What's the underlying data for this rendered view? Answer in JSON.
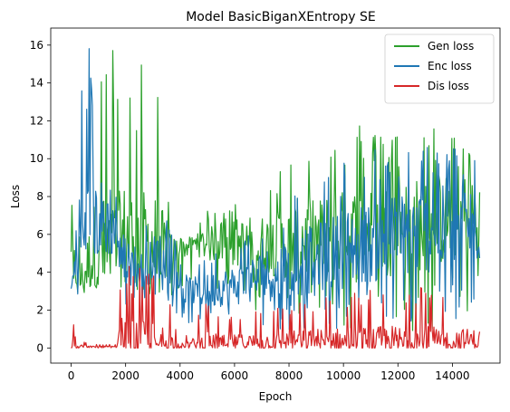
{
  "chart_data": {
    "type": "line",
    "title": "Model BasicBiganXEntropy SE",
    "xlabel": "Epoch",
    "ylabel": "Loss",
    "xlim": [
      -750,
      15750
    ],
    "ylim": [
      -0.8,
      16.9
    ],
    "xticks": [
      0,
      2000,
      4000,
      6000,
      8000,
      10000,
      12000,
      14000
    ],
    "yticks": [
      0,
      2,
      4,
      6,
      8,
      10,
      12,
      14,
      16
    ],
    "grid": false,
    "legend_position": "upper right",
    "series": [
      {
        "name": "Gen loss",
        "color": "#2ca02c",
        "envelope": {
          "x": [
            0,
            100,
            300,
            500,
            800,
            1000,
            1200,
            1500,
            1750,
            2000,
            2300,
            2600,
            2900,
            3200,
            3600,
            4000,
            4500,
            5000,
            5500,
            6000,
            6500,
            7000,
            7500,
            8000,
            8500,
            9000,
            9500,
            10000,
            10500,
            11000,
            11500,
            12000,
            12500,
            13000,
            13500,
            14000,
            14500,
            15000
          ],
          "high": [
            14.5,
            8.0,
            6.5,
            7.5,
            15.5,
            16.0,
            16.0,
            16.0,
            16.0,
            15.8,
            14.0,
            15.5,
            15.0,
            15.8,
            7.5,
            6.0,
            5.8,
            7.5,
            7.0,
            8.5,
            8.5,
            8.8,
            9.5,
            10.0,
            12.2,
            10.5,
            11.0,
            11.5,
            12.5,
            11.0,
            12.5,
            11.5,
            12.2,
            11.5,
            12.0,
            11.5,
            11.0,
            10.5
          ],
          "low": [
            4.0,
            2.8,
            2.2,
            2.8,
            3.5,
            3.0,
            3.5,
            3.5,
            3.8,
            2.0,
            3.0,
            2.8,
            2.5,
            3.0,
            2.5,
            3.2,
            3.5,
            3.2,
            3.0,
            2.5,
            2.0,
            2.0,
            1.8,
            1.5,
            1.5,
            1.5,
            1.0,
            1.0,
            1.0,
            1.0,
            0.8,
            0.8,
            0.8,
            0.8,
            0.8,
            0.8,
            0.8,
            1.0
          ],
          "mid": [
            6.0,
            4.5,
            3.5,
            4.0,
            5.0,
            5.0,
            5.2,
            5.0,
            5.5,
            5.8,
            6.0,
            5.5,
            5.5,
            5.2,
            5.0,
            5.2,
            5.5,
            5.5,
            5.5,
            5.5,
            5.5,
            5.5,
            5.5,
            5.5,
            5.8,
            5.8,
            6.0,
            6.0,
            6.0,
            6.2,
            6.2,
            6.5,
            6.5,
            6.5,
            6.8,
            6.8,
            7.0,
            7.0
          ]
        }
      },
      {
        "name": "Enc loss",
        "color": "#1f77b4",
        "envelope": {
          "x": [
            0,
            100,
            300,
            400,
            500,
            1000,
            1500,
            1750,
            1800,
            2000,
            2300,
            2600,
            2900,
            3200,
            3600,
            4000,
            4500,
            5000,
            5500,
            6000,
            6500,
            7000,
            7500,
            8000,
            8500,
            9000,
            9500,
            10000,
            10500,
            11000,
            11500,
            12000,
            12500,
            13000,
            13500,
            14000,
            14500,
            15000
          ],
          "high": [
            5.5,
            6.0,
            8.0,
            16.1,
            16.1,
            16.1,
            16.1,
            16.1,
            7.5,
            6.0,
            5.5,
            6.0,
            7.0,
            8.5,
            6.5,
            5.0,
            4.5,
            5.0,
            5.5,
            5.5,
            6.5,
            7.0,
            7.5,
            8.0,
            8.5,
            9.0,
            9.5,
            10.0,
            10.2,
            10.5,
            10.5,
            10.8,
            10.8,
            10.8,
            11.0,
            10.8,
            10.5,
            10.5
          ],
          "low": [
            1.0,
            2.5,
            3.0,
            3.5,
            5.0,
            5.0,
            5.0,
            5.0,
            3.0,
            2.0,
            2.0,
            2.0,
            2.0,
            2.5,
            2.5,
            1.5,
            1.2,
            1.0,
            1.0,
            1.0,
            1.0,
            0.8,
            0.8,
            0.8,
            0.8,
            0.8,
            0.8,
            0.8,
            0.8,
            0.8,
            0.8,
            0.8,
            0.8,
            0.8,
            0.8,
            0.8,
            0.8,
            1.0
          ],
          "mid": [
            3.0,
            4.0,
            5.0,
            6.0,
            6.5,
            6.5,
            6.5,
            6.5,
            5.0,
            4.0,
            4.0,
            4.2,
            4.5,
            5.0,
            4.0,
            3.2,
            3.0,
            3.0,
            3.2,
            3.3,
            3.5,
            3.8,
            4.0,
            4.2,
            4.5,
            4.8,
            5.0,
            5.2,
            5.5,
            5.5,
            5.8,
            6.0,
            6.0,
            6.2,
            6.2,
            6.5,
            6.5,
            6.5
          ]
        }
      },
      {
        "name": "Dis loss",
        "color": "#d62728",
        "envelope": {
          "x": [
            0,
            100,
            300,
            500,
            800,
            1000,
            1500,
            1700,
            1750,
            1800,
            2000,
            2300,
            2600,
            2900,
            3200,
            3600,
            4000,
            4500,
            5000,
            5500,
            6000,
            6500,
            7000,
            7500,
            8000,
            8500,
            9000,
            9500,
            10000,
            10500,
            11000,
            11500,
            12000,
            12500,
            13000,
            13500,
            14000,
            14500,
            15000
          ],
          "high": [
            5.7,
            1.0,
            0.4,
            0.3,
            0.2,
            0.2,
            0.2,
            0.2,
            2.5,
            4.7,
            4.5,
            4.2,
            4.5,
            4.0,
            4.2,
            3.0,
            0.5,
            1.5,
            2.5,
            1.8,
            1.8,
            2.0,
            2.0,
            2.2,
            2.2,
            2.5,
            2.8,
            3.0,
            2.8,
            3.0,
            3.2,
            3.5,
            3.5,
            3.5,
            3.5,
            3.0,
            3.0,
            2.8,
            2.5
          ],
          "low": [
            0.0,
            0.0,
            0.0,
            0.0,
            0.0,
            0.0,
            0.0,
            0.0,
            0.0,
            0.0,
            0.0,
            0.0,
            0.0,
            0.0,
            0.0,
            0.0,
            0.0,
            0.0,
            0.0,
            0.0,
            0.0,
            0.0,
            0.0,
            0.0,
            0.0,
            0.0,
            0.0,
            0.0,
            0.0,
            0.0,
            0.0,
            0.0,
            0.0,
            0.0,
            0.0,
            0.0,
            0.0,
            0.0,
            0.0
          ],
          "mid": [
            0.5,
            0.1,
            0.1,
            0.1,
            0.05,
            0.05,
            0.05,
            0.05,
            0.5,
            0.6,
            0.5,
            0.5,
            0.5,
            0.5,
            0.5,
            0.3,
            0.1,
            0.2,
            0.3,
            0.3,
            0.3,
            0.3,
            0.3,
            0.3,
            0.4,
            0.4,
            0.4,
            0.4,
            0.4,
            0.4,
            0.4,
            0.4,
            0.4,
            0.4,
            0.4,
            0.4,
            0.4,
            0.4,
            0.4
          ]
        }
      }
    ]
  }
}
